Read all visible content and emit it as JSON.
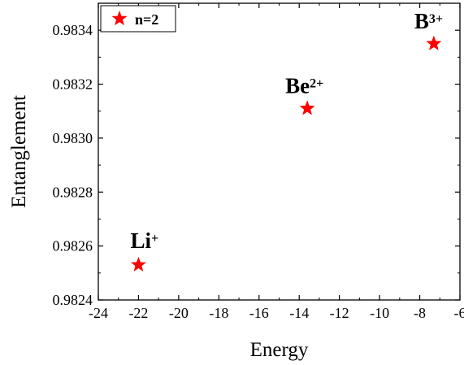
{
  "chart_data": {
    "type": "scatter",
    "xlabel": "Energy",
    "ylabel": "Entanglement",
    "xlim": [
      -24,
      -6
    ],
    "ylim": [
      0.9824,
      0.9835
    ],
    "xticks": [
      -24,
      -22,
      -20,
      -18,
      -16,
      -14,
      -12,
      -10,
      -8,
      -6
    ],
    "xtick_labels": [
      "-24",
      "-22",
      "-20",
      "-18",
      "-16",
      "-14",
      "-12",
      "-10",
      "-8",
      "-6"
    ],
    "yticks": [
      0.9824,
      0.9826,
      0.9828,
      0.983,
      0.9832,
      0.9834
    ],
    "ytick_labels": [
      "0.9824",
      "0.9826",
      "0.9828",
      "0.9830",
      "0.9832",
      "0.9834"
    ],
    "grid": false,
    "legend_position": "top-left",
    "series": [
      {
        "name": "n=2",
        "marker": "star",
        "color": "#ff0000",
        "points": [
          {
            "x": -22.0,
            "y": 0.98253,
            "label": "Li",
            "charge": "+"
          },
          {
            "x": -13.6,
            "y": 0.98311,
            "label": "Be",
            "charge": "2+"
          },
          {
            "x": -7.3,
            "y": 0.98335,
            "label": "B",
            "charge": "3+"
          }
        ]
      }
    ]
  }
}
